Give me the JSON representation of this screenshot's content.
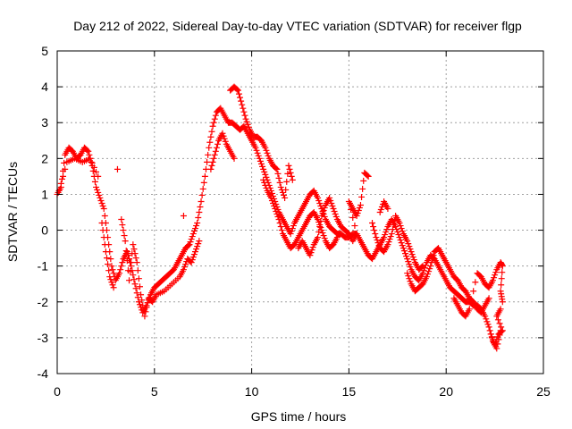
{
  "chart_data": {
    "type": "scatter",
    "title": "Day 212 of 2022, Sidereal Day-to-day VTEC variation (SDTVAR) for receiver flgp",
    "xlabel": "GPS time / hours",
    "ylabel": "SDTVAR / TECUs",
    "xlim": [
      0,
      25
    ],
    "ylim": [
      -4,
      5
    ],
    "xticks": [
      0,
      5,
      10,
      15,
      20,
      25
    ],
    "yticks": [
      -4,
      -3,
      -2,
      -1,
      0,
      1,
      2,
      3,
      4,
      5
    ],
    "grid": true,
    "marker": "plus",
    "color": "#ff0000",
    "series": [
      {
        "name": "SDTVAR",
        "points": [
          [
            0.0,
            1.0
          ],
          [
            0.2,
            1.2
          ],
          [
            0.4,
            2.1
          ],
          [
            0.6,
            2.3
          ],
          [
            0.8,
            2.2
          ],
          [
            1.0,
            2.0
          ],
          [
            1.2,
            2.1
          ],
          [
            1.4,
            2.3
          ],
          [
            1.6,
            2.2
          ],
          [
            1.8,
            1.8
          ],
          [
            2.0,
            1.2
          ],
          [
            2.2,
            0.9
          ],
          [
            2.4,
            0.6
          ],
          [
            2.6,
            -0.2
          ],
          [
            2.8,
            -1.0
          ],
          [
            3.0,
            -1.4
          ],
          [
            3.2,
            -1.2
          ],
          [
            3.4,
            -0.8
          ],
          [
            3.6,
            -0.6
          ],
          [
            3.8,
            -1.0
          ],
          [
            4.0,
            -1.5
          ],
          [
            4.2,
            -2.0
          ],
          [
            4.4,
            -2.3
          ],
          [
            4.6,
            -2.1
          ],
          [
            4.8,
            -1.8
          ],
          [
            5.0,
            -1.6
          ],
          [
            5.2,
            -1.5
          ],
          [
            5.4,
            -1.4
          ],
          [
            5.6,
            -1.3
          ],
          [
            5.8,
            -1.2
          ],
          [
            6.0,
            -1.1
          ],
          [
            6.2,
            -0.9
          ],
          [
            6.4,
            -0.7
          ],
          [
            6.6,
            -0.5
          ],
          [
            6.8,
            -0.4
          ],
          [
            7.0,
            -0.1
          ],
          [
            7.2,
            0.2
          ],
          [
            7.4,
            0.8
          ],
          [
            7.6,
            1.5
          ],
          [
            7.8,
            2.3
          ],
          [
            8.0,
            2.9
          ],
          [
            8.2,
            3.3
          ],
          [
            8.4,
            3.4
          ],
          [
            8.6,
            3.2
          ],
          [
            8.8,
            3.0
          ],
          [
            9.0,
            3.0
          ],
          [
            9.2,
            2.9
          ],
          [
            9.4,
            2.8
          ],
          [
            9.6,
            2.9
          ],
          [
            9.8,
            2.7
          ],
          [
            10.0,
            2.5
          ],
          [
            10.2,
            2.3
          ],
          [
            10.4,
            2.0
          ],
          [
            10.6,
            1.7
          ],
          [
            10.8,
            1.4
          ],
          [
            11.0,
            1.1
          ],
          [
            11.2,
            0.8
          ],
          [
            11.4,
            0.5
          ],
          [
            11.6,
            0.3
          ],
          [
            11.8,
            0.1
          ],
          [
            12.0,
            -0.1
          ],
          [
            12.2,
            0.2
          ],
          [
            12.4,
            0.4
          ],
          [
            12.6,
            0.6
          ],
          [
            12.8,
            0.8
          ],
          [
            13.0,
            1.0
          ],
          [
            13.2,
            1.1
          ],
          [
            13.4,
            0.9
          ],
          [
            13.6,
            0.6
          ],
          [
            13.8,
            0.3
          ],
          [
            14.0,
            0.1
          ],
          [
            14.2,
            0.0
          ],
          [
            14.4,
            -0.1
          ],
          [
            14.6,
            -0.1
          ],
          [
            14.8,
            -0.2
          ],
          [
            15.0,
            -0.2
          ],
          [
            15.2,
            -0.1
          ],
          [
            15.4,
            -0.1
          ],
          [
            15.6,
            -0.3
          ],
          [
            15.8,
            -0.5
          ],
          [
            16.0,
            -0.7
          ],
          [
            16.2,
            -0.8
          ],
          [
            16.4,
            -0.6
          ],
          [
            16.6,
            -0.4
          ],
          [
            16.8,
            -0.2
          ],
          [
            17.0,
            0.1
          ],
          [
            17.2,
            0.3
          ],
          [
            17.4,
            0.1
          ],
          [
            17.6,
            -0.2
          ],
          [
            17.8,
            -0.5
          ],
          [
            18.0,
            -0.8
          ],
          [
            18.2,
            -1.1
          ],
          [
            18.4,
            -1.3
          ],
          [
            18.6,
            -1.4
          ],
          [
            18.8,
            -1.2
          ],
          [
            19.0,
            -0.9
          ],
          [
            19.2,
            -0.7
          ],
          [
            19.4,
            -0.8
          ],
          [
            19.6,
            -1.0
          ],
          [
            19.8,
            -1.2
          ],
          [
            20.0,
            -1.4
          ],
          [
            20.2,
            -1.6
          ],
          [
            20.4,
            -1.7
          ],
          [
            20.6,
            -1.8
          ],
          [
            20.8,
            -1.9
          ],
          [
            21.0,
            -2.0
          ],
          [
            21.2,
            -2.0
          ],
          [
            21.4,
            -2.1
          ],
          [
            21.6,
            -2.1
          ],
          [
            21.8,
            -2.2
          ],
          [
            22.0,
            -2.4
          ],
          [
            22.2,
            -2.7
          ],
          [
            22.4,
            -3.1
          ],
          [
            22.6,
            -3.3
          ],
          [
            22.8,
            -2.8
          ],
          [
            0.1,
            1.1
          ],
          [
            0.5,
            1.9
          ],
          [
            0.9,
            2.0
          ],
          [
            1.3,
            1.9
          ],
          [
            1.7,
            2.0
          ],
          [
            2.1,
            1.5
          ],
          [
            2.3,
            0.2
          ],
          [
            2.5,
            -0.6
          ],
          [
            2.7,
            -1.3
          ],
          [
            2.9,
            -1.6
          ],
          [
            3.1,
            1.7
          ],
          [
            3.3,
            0.3
          ],
          [
            3.5,
            -0.3
          ],
          [
            3.7,
            -1.4
          ],
          [
            3.9,
            -0.4
          ],
          [
            4.1,
            -0.9
          ],
          [
            4.3,
            -1.8
          ],
          [
            4.5,
            -2.4
          ],
          [
            4.7,
            -1.9
          ],
          [
            4.9,
            -2.0
          ],
          [
            5.1,
            -1.8
          ],
          [
            5.5,
            -1.7
          ],
          [
            5.9,
            -1.5
          ],
          [
            6.3,
            -1.3
          ],
          [
            6.5,
            -1.1
          ],
          [
            6.7,
            -0.8
          ],
          [
            6.9,
            -0.9
          ],
          [
            7.1,
            -0.6
          ],
          [
            7.3,
            -0.3
          ],
          [
            6.5,
            0.4
          ],
          [
            7.9,
            1.7
          ],
          [
            8.1,
            2.1
          ],
          [
            8.3,
            2.5
          ],
          [
            8.5,
            2.7
          ],
          [
            8.7,
            2.4
          ],
          [
            8.9,
            2.2
          ],
          [
            9.1,
            2.0
          ],
          [
            8.9,
            3.9
          ],
          [
            9.1,
            4.0
          ],
          [
            9.3,
            3.9
          ],
          [
            9.5,
            3.5
          ],
          [
            9.7,
            3.1
          ],
          [
            9.9,
            2.8
          ],
          [
            10.1,
            2.6
          ],
          [
            10.3,
            2.6
          ],
          [
            10.5,
            2.5
          ],
          [
            10.7,
            2.3
          ],
          [
            10.9,
            2.0
          ],
          [
            11.1,
            1.8
          ],
          [
            11.3,
            1.7
          ],
          [
            11.5,
            1.2
          ],
          [
            11.7,
            0.9
          ],
          [
            11.9,
            1.8
          ],
          [
            12.1,
            1.4
          ],
          [
            10.6,
            1.4
          ],
          [
            10.8,
            1.1
          ],
          [
            11.0,
            0.9
          ],
          [
            11.2,
            0.6
          ],
          [
            11.4,
            0.3
          ],
          [
            11.6,
            -0.1
          ],
          [
            11.8,
            -0.3
          ],
          [
            12.0,
            -0.5
          ],
          [
            12.2,
            -0.4
          ],
          [
            12.4,
            -0.2
          ],
          [
            12.6,
            0.0
          ],
          [
            12.8,
            0.2
          ],
          [
            13.0,
            0.4
          ],
          [
            13.2,
            0.5
          ],
          [
            13.4,
            0.3
          ],
          [
            13.6,
            0.0
          ],
          [
            13.8,
            -0.3
          ],
          [
            14.0,
            -0.5
          ],
          [
            14.2,
            -0.4
          ],
          [
            14.4,
            -0.2
          ],
          [
            12.4,
            -0.5
          ],
          [
            12.6,
            -0.3
          ],
          [
            12.8,
            -0.5
          ],
          [
            13.0,
            -0.7
          ],
          [
            13.2,
            -0.4
          ],
          [
            13.4,
            -0.2
          ],
          [
            13.6,
            0.4
          ],
          [
            13.8,
            0.7
          ],
          [
            14.0,
            0.9
          ],
          [
            14.2,
            0.6
          ],
          [
            14.4,
            0.3
          ],
          [
            14.6,
            0.1
          ],
          [
            14.8,
            0.0
          ],
          [
            15.0,
            -0.1
          ],
          [
            15.2,
            -0.3
          ],
          [
            15.4,
            -0.1
          ],
          [
            15.0,
            0.8
          ],
          [
            15.2,
            0.6
          ],
          [
            15.4,
            0.4
          ],
          [
            15.6,
            0.7
          ],
          [
            15.8,
            1.6
          ],
          [
            16.0,
            1.5
          ],
          [
            16.2,
            0.2
          ],
          [
            16.4,
            -0.2
          ],
          [
            16.6,
            -0.5
          ],
          [
            16.8,
            -0.6
          ],
          [
            17.0,
            -0.4
          ],
          [
            17.2,
            -0.1
          ],
          [
            17.4,
            0.4
          ],
          [
            17.6,
            0.2
          ],
          [
            17.8,
            -0.1
          ],
          [
            18.0,
            -0.3
          ],
          [
            18.2,
            -0.6
          ],
          [
            18.4,
            -0.9
          ],
          [
            18.6,
            -1.1
          ],
          [
            18.8,
            -1.0
          ],
          [
            16.6,
            0.5
          ],
          [
            16.8,
            0.8
          ],
          [
            17.0,
            0.6
          ],
          [
            18.0,
            -1.2
          ],
          [
            18.2,
            -1.5
          ],
          [
            18.4,
            -1.7
          ],
          [
            18.6,
            -1.6
          ],
          [
            18.8,
            -1.5
          ],
          [
            19.0,
            -1.3
          ],
          [
            19.2,
            -1.0
          ],
          [
            19.4,
            -0.6
          ],
          [
            19.6,
            -0.5
          ],
          [
            19.8,
            -0.7
          ],
          [
            20.0,
            -0.9
          ],
          [
            20.2,
            -1.1
          ],
          [
            20.4,
            -1.3
          ],
          [
            20.6,
            -1.4
          ],
          [
            20.8,
            -1.6
          ],
          [
            21.0,
            -1.7
          ],
          [
            21.2,
            -1.9
          ],
          [
            21.4,
            -2.0
          ],
          [
            21.6,
            -2.2
          ],
          [
            21.8,
            -2.3
          ],
          [
            22.0,
            -2.1
          ],
          [
            22.2,
            -1.9
          ],
          [
            20.4,
            -1.9
          ],
          [
            20.6,
            -2.1
          ],
          [
            20.8,
            -2.3
          ],
          [
            21.0,
            -2.4
          ],
          [
            21.2,
            -2.2
          ],
          [
            21.6,
            -1.2
          ],
          [
            21.8,
            -1.3
          ],
          [
            22.0,
            -1.5
          ],
          [
            22.2,
            -1.6
          ],
          [
            22.4,
            -1.4
          ],
          [
            22.6,
            -1.1
          ],
          [
            22.8,
            -0.9
          ],
          [
            22.9,
            -1.0
          ],
          [
            22.8,
            -1.7
          ],
          [
            22.9,
            -2.0
          ],
          [
            22.3,
            -2.9
          ],
          [
            22.5,
            -3.2
          ],
          [
            22.7,
            -2.9
          ],
          [
            22.9,
            -2.8
          ],
          [
            22.6,
            -2.4
          ],
          [
            22.8,
            -2.2
          ]
        ]
      }
    ]
  }
}
